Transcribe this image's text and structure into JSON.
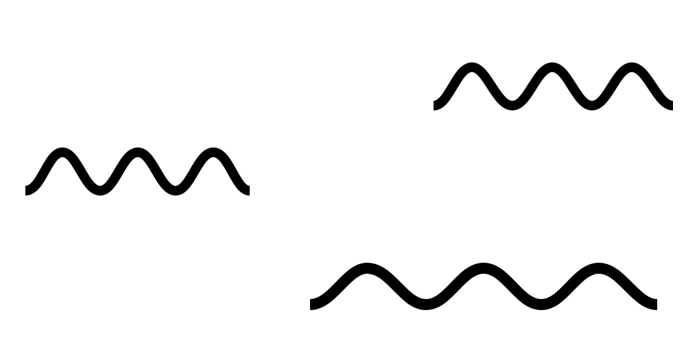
{
  "scene": {
    "background_color": "#ffffff",
    "stroke_color": "#000000",
    "shapes": [
      {
        "name": "wavy-line-left",
        "kind": "wavy line",
        "periods": 3
      },
      {
        "name": "wavy-line-top-right",
        "kind": "wavy line",
        "periods": 3
      },
      {
        "name": "wavy-line-bottom",
        "kind": "wavy line",
        "periods": 3
      }
    ]
  }
}
